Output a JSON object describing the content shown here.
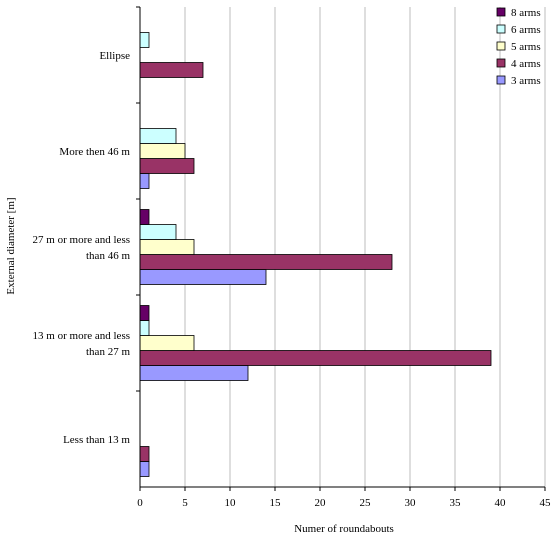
{
  "chart_data": {
    "type": "bar",
    "orientation": "horizontal",
    "title": "",
    "xlabel": "Numer of roundabouts",
    "ylabel": "External diameter [m]",
    "xlim": [
      0,
      45
    ],
    "xticks": [
      0,
      5,
      10,
      15,
      20,
      25,
      30,
      35,
      40,
      45
    ],
    "grid": "vertical",
    "legend_position": "top-right",
    "categories": [
      [
        "Less than 13 m"
      ],
      [
        "13 m or more and less",
        "than 27 m"
      ],
      [
        "27 m or more and less",
        "than 46 m"
      ],
      [
        "More then 46 m"
      ],
      [
        "Ellipse"
      ]
    ],
    "series": [
      {
        "name": "3 arms",
        "color": "#9999ff",
        "values": [
          1,
          12,
          14,
          1,
          0
        ]
      },
      {
        "name": "4 arms",
        "color": "#993366",
        "values": [
          1,
          39,
          28,
          6,
          7
        ]
      },
      {
        "name": "5 arms",
        "color": "#ffffcc",
        "values": [
          0,
          6,
          6,
          5,
          0
        ]
      },
      {
        "name": "6 arms",
        "color": "#ccffff",
        "values": [
          0,
          1,
          4,
          4,
          1
        ]
      },
      {
        "name": "8 arms",
        "color": "#660066",
        "values": [
          0,
          1,
          1,
          0,
          0
        ]
      }
    ]
  }
}
